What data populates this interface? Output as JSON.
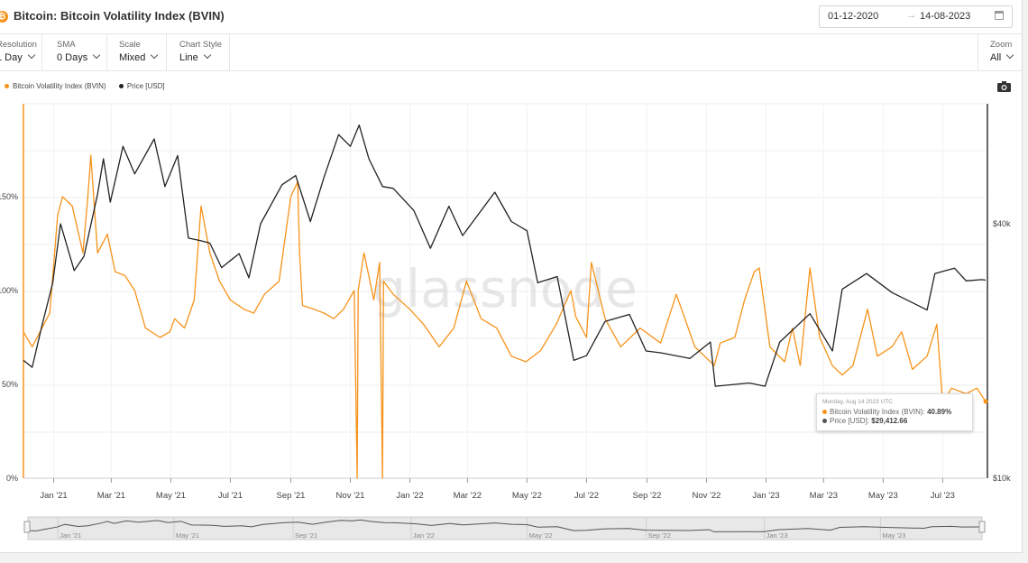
{
  "header": {
    "title": "Bitcoin: Bitcoin Volatility Index (BVIN)",
    "btc_glyph": "₿",
    "date_from": "01-12-2020",
    "date_arrow": "→",
    "date_to": "14-08-2023"
  },
  "toolbar": {
    "resolution": {
      "label": "Resolution",
      "value": "1 Day"
    },
    "sma": {
      "label": "SMA",
      "value": "0 Days"
    },
    "scale": {
      "label": "Scale",
      "value": "Mixed"
    },
    "chart_style": {
      "label": "Chart Style",
      "value": "Line"
    },
    "zoom": {
      "label": "Zoom",
      "value": "All"
    }
  },
  "legend": [
    {
      "name": "Bitcoin Volatility Index (BVIN)",
      "color": "#f7931a"
    },
    {
      "name": "Price [USD]",
      "color": "#222222"
    }
  ],
  "watermark": "glassnode",
  "tooltip": {
    "date": "Monday, Aug 14 2023 UTC",
    "series1_label": "Bitcoin Volatility Index (BVIN):",
    "series1_value": "40.89%",
    "series2_label": "Price [USD]:",
    "series2_value": "$29,412.66"
  },
  "icons": {
    "camera": "camera-icon",
    "calendar": "calendar-icon"
  },
  "chart_data": {
    "type": "line",
    "left_axis": {
      "ticks": [
        0,
        50,
        100,
        150
      ],
      "tick_labels": [
        "0%",
        "50%",
        "100%",
        "150%"
      ],
      "unit": "%"
    },
    "right_axis": {
      "scale": "log",
      "ticks": [
        10000,
        40000
      ],
      "tick_labels": [
        "$10k",
        "$40k"
      ],
      "unit": "USD"
    },
    "x_tick_labels": [
      "Jan '21",
      "Mar '21",
      "May '21",
      "Jul '21",
      "Sep '21",
      "Nov '21",
      "Jan '22",
      "Mar '22",
      "May '22",
      "Jul '22",
      "Sep '22",
      "Nov '22",
      "Jan '23",
      "Mar '23",
      "May '23",
      "Jul '23"
    ],
    "navigator_labels": [
      "Jan '21",
      "May '21",
      "Sep '21",
      "Jan '22",
      "May '22",
      "Sep '22",
      "Jan '23",
      "May '23"
    ],
    "x_range": [
      "2020-12-01",
      "2023-08-14"
    ],
    "series": [
      {
        "name": "Bitcoin Volatility Index (BVIN)",
        "color": "#f7931a",
        "axis": "left",
        "points": [
          [
            "2020-12-01",
            78
          ],
          [
            "2020-12-10",
            70
          ],
          [
            "2020-12-20",
            80
          ],
          [
            "2020-12-28",
            88
          ],
          [
            "2021-01-05",
            140
          ],
          [
            "2021-01-10",
            150
          ],
          [
            "2021-01-20",
            145
          ],
          [
            "2021-01-31",
            120
          ],
          [
            "2021-02-05",
            150
          ],
          [
            "2021-02-08",
            172
          ],
          [
            "2021-02-15",
            120
          ],
          [
            "2021-02-25",
            130
          ],
          [
            "2021-03-05",
            110
          ],
          [
            "2021-03-15",
            108
          ],
          [
            "2021-03-25",
            100
          ],
          [
            "2021-04-05",
            80
          ],
          [
            "2021-04-20",
            75
          ],
          [
            "2021-04-30",
            78
          ],
          [
            "2021-05-05",
            85
          ],
          [
            "2021-05-15",
            80
          ],
          [
            "2021-05-25",
            95
          ],
          [
            "2021-06-01",
            145
          ],
          [
            "2021-06-10",
            120
          ],
          [
            "2021-06-20",
            105
          ],
          [
            "2021-07-01",
            95
          ],
          [
            "2021-07-15",
            90
          ],
          [
            "2021-07-25",
            88
          ],
          [
            "2021-08-05",
            98
          ],
          [
            "2021-08-20",
            105
          ],
          [
            "2021-09-01",
            150
          ],
          [
            "2021-09-08",
            158
          ],
          [
            "2021-09-10",
            120
          ],
          [
            "2021-09-13",
            92
          ],
          [
            "2021-09-25",
            90
          ],
          [
            "2021-10-05",
            88
          ],
          [
            "2021-10-15",
            85
          ],
          [
            "2021-10-25",
            90
          ],
          [
            "2021-11-05",
            100
          ],
          [
            "2021-11-08",
            0
          ],
          [
            "2021-11-09",
            100
          ],
          [
            "2021-11-15",
            120
          ],
          [
            "2021-11-25",
            95
          ],
          [
            "2021-12-01",
            115
          ],
          [
            "2021-12-04",
            0
          ],
          [
            "2021-12-05",
            105
          ],
          [
            "2021-12-15",
            98
          ],
          [
            "2022-01-01",
            90
          ],
          [
            "2022-01-15",
            82
          ],
          [
            "2022-01-31",
            70
          ],
          [
            "2022-02-15",
            80
          ],
          [
            "2022-02-28",
            105
          ],
          [
            "2022-03-15",
            85
          ],
          [
            "2022-03-31",
            80
          ],
          [
            "2022-04-15",
            65
          ],
          [
            "2022-04-30",
            62
          ],
          [
            "2022-05-15",
            68
          ],
          [
            "2022-05-31",
            82
          ],
          [
            "2022-06-15",
            100
          ],
          [
            "2022-06-20",
            86
          ],
          [
            "2022-07-01",
            75
          ],
          [
            "2022-07-06",
            115
          ],
          [
            "2022-07-20",
            85
          ],
          [
            "2022-08-05",
            70
          ],
          [
            "2022-08-25",
            80
          ],
          [
            "2022-09-15",
            72
          ],
          [
            "2022-10-01",
            98
          ],
          [
            "2022-10-20",
            70
          ],
          [
            "2022-11-09",
            60
          ],
          [
            "2022-11-15",
            72
          ],
          [
            "2022-11-30",
            75
          ],
          [
            "2022-12-10",
            95
          ],
          [
            "2022-12-20",
            110
          ],
          [
            "2022-12-25",
            112
          ],
          [
            "2023-01-05",
            70
          ],
          [
            "2023-01-20",
            62
          ],
          [
            "2023-01-28",
            80
          ],
          [
            "2023-02-05",
            60
          ],
          [
            "2023-02-15",
            112
          ],
          [
            "2023-02-25",
            75
          ],
          [
            "2023-03-10",
            60
          ],
          [
            "2023-03-20",
            55
          ],
          [
            "2023-03-31",
            60
          ],
          [
            "2023-04-15",
            90
          ],
          [
            "2023-04-25",
            65
          ],
          [
            "2023-05-10",
            70
          ],
          [
            "2023-05-20",
            78
          ],
          [
            "2023-05-31",
            58
          ],
          [
            "2023-06-15",
            65
          ],
          [
            "2023-06-25",
            82
          ],
          [
            "2023-07-01",
            40
          ],
          [
            "2023-07-10",
            48
          ],
          [
            "2023-07-25",
            45
          ],
          [
            "2023-08-05",
            48
          ],
          [
            "2023-08-14",
            40.89
          ]
        ]
      },
      {
        "name": "Price [USD]",
        "color": "#222222",
        "axis": "right",
        "points": [
          [
            "2020-12-01",
            19000
          ],
          [
            "2020-12-10",
            18300
          ],
          [
            "2020-12-20",
            23000
          ],
          [
            "2020-12-31",
            29000
          ],
          [
            "2021-01-08",
            40000
          ],
          [
            "2021-01-22",
            31000
          ],
          [
            "2021-02-01",
            33500
          ],
          [
            "2021-02-15",
            47000
          ],
          [
            "2021-02-21",
            57000
          ],
          [
            "2021-02-28",
            45000
          ],
          [
            "2021-03-13",
            61000
          ],
          [
            "2021-03-25",
            52500
          ],
          [
            "2021-04-14",
            63500
          ],
          [
            "2021-04-25",
            49000
          ],
          [
            "2021-05-08",
            58000
          ],
          [
            "2021-05-19",
            37000
          ],
          [
            "2021-05-31",
            36500
          ],
          [
            "2021-06-10",
            36000
          ],
          [
            "2021-06-22",
            31500
          ],
          [
            "2021-07-10",
            34000
          ],
          [
            "2021-07-20",
            29800
          ],
          [
            "2021-08-01",
            40000
          ],
          [
            "2021-08-23",
            49500
          ],
          [
            "2021-09-06",
            52000
          ],
          [
            "2021-09-21",
            40500
          ],
          [
            "2021-10-05",
            51500
          ],
          [
            "2021-10-20",
            65000
          ],
          [
            "2021-11-01",
            61000
          ],
          [
            "2021-11-10",
            68500
          ],
          [
            "2021-11-20",
            57000
          ],
          [
            "2021-12-04",
            49000
          ],
          [
            "2021-12-15",
            48500
          ],
          [
            "2022-01-05",
            43000
          ],
          [
            "2022-01-22",
            35000
          ],
          [
            "2022-02-10",
            44000
          ],
          [
            "2022-02-24",
            37500
          ],
          [
            "2022-03-29",
            47500
          ],
          [
            "2022-04-15",
            40500
          ],
          [
            "2022-05-01",
            38500
          ],
          [
            "2022-05-12",
            29000
          ],
          [
            "2022-06-01",
            30000
          ],
          [
            "2022-06-18",
            19000
          ],
          [
            "2022-07-01",
            19500
          ],
          [
            "2022-07-20",
            23500
          ],
          [
            "2022-08-14",
            24400
          ],
          [
            "2022-08-31",
            20000
          ],
          [
            "2022-09-15",
            19800
          ],
          [
            "2022-10-15",
            19200
          ],
          [
            "2022-11-05",
            21000
          ],
          [
            "2022-11-10",
            16500
          ],
          [
            "2022-12-15",
            16800
          ],
          [
            "2022-12-31",
            16500
          ],
          [
            "2023-01-15",
            21000
          ],
          [
            "2023-02-15",
            24500
          ],
          [
            "2023-03-10",
            20000
          ],
          [
            "2023-03-20",
            28000
          ],
          [
            "2023-04-14",
            30500
          ],
          [
            "2023-05-10",
            27500
          ],
          [
            "2023-06-15",
            25000
          ],
          [
            "2023-06-23",
            30500
          ],
          [
            "2023-07-13",
            31400
          ],
          [
            "2023-07-25",
            29300
          ],
          [
            "2023-08-10",
            29500
          ],
          [
            "2023-08-14",
            29412.66
          ]
        ]
      }
    ]
  }
}
